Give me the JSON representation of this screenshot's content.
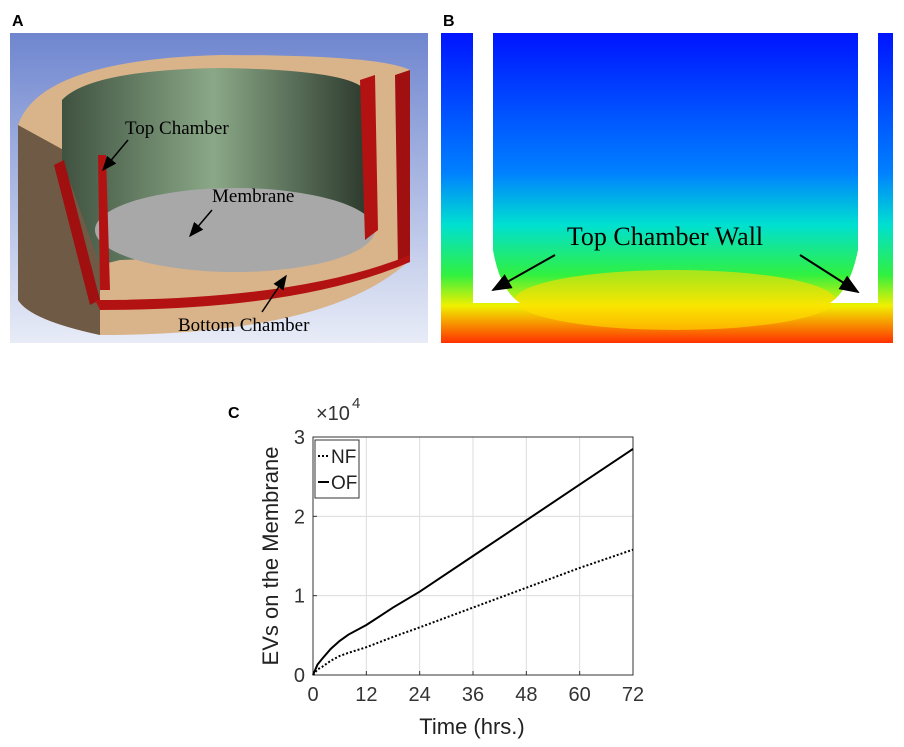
{
  "panel_a": {
    "letter": "A",
    "labels": [
      "Top Chamber",
      "Membrane",
      "Bottom Chamber"
    ]
  },
  "panel_b": {
    "letter": "B",
    "label": "Top Chamber Wall"
  },
  "chart_data": {
    "type": "line",
    "letter": "C",
    "xlabel": "Time (hrs.)",
    "ylabel": "EVs on the Membrane",
    "y_multiplier": {
      "base": "×10",
      "exponent": "4"
    },
    "x": [
      0,
      1,
      2,
      4,
      6,
      8,
      12,
      18,
      24,
      36,
      48,
      60,
      72
    ],
    "series": [
      {
        "name": "NF",
        "color": "#000000",
        "style": "dotted",
        "values": [
          0,
          0.07,
          0.1,
          0.18,
          0.24,
          0.28,
          0.35,
          0.48,
          0.6,
          0.85,
          1.1,
          1.35,
          1.58
        ]
      },
      {
        "name": "OF",
        "color": "#000000",
        "style": "solid",
        "values": [
          0,
          0.13,
          0.2,
          0.33,
          0.43,
          0.51,
          0.63,
          0.85,
          1.05,
          1.5,
          1.95,
          2.4,
          2.85
        ]
      }
    ],
    "xlim": [
      0,
      72
    ],
    "xticks": [
      0,
      12,
      24,
      36,
      48,
      60,
      72
    ],
    "ylim": [
      0,
      3
    ],
    "yticks": [
      0,
      1,
      2,
      3
    ],
    "grid": true,
    "legend": "top-left"
  }
}
